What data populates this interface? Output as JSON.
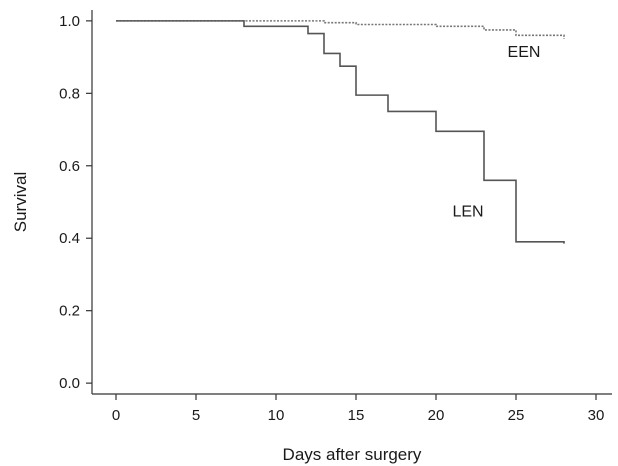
{
  "chart_data": {
    "type": "line",
    "title": "",
    "xlabel": "Days after surgery",
    "ylabel": "Survival",
    "xlim": [
      -1.5,
      31
    ],
    "ylim": [
      -0.03,
      1.03
    ],
    "xticks": [
      0,
      5,
      10,
      15,
      20,
      25,
      30
    ],
    "yticks": [
      0.0,
      0.2,
      0.4,
      0.6,
      0.8,
      1.0
    ],
    "xtick_labels": [
      "0",
      "5",
      "10",
      "15",
      "20",
      "25",
      "30"
    ],
    "ytick_labels": [
      "0.0",
      "0.2",
      "0.4",
      "0.6",
      "0.8",
      "1.0"
    ],
    "grid": false,
    "legend": "none",
    "step": true,
    "series": [
      {
        "name": "EEN",
        "style": "dotted",
        "color": "#777777",
        "label_at": [
          25.5,
          0.9
        ],
        "x": [
          0,
          8,
          13,
          15,
          20,
          23,
          25,
          28
        ],
        "y": [
          1.0,
          1.0,
          0.995,
          0.99,
          0.985,
          0.975,
          0.96,
          0.95
        ]
      },
      {
        "name": "LEN",
        "style": "solid",
        "color": "#555555",
        "label_at": [
          22,
          0.46
        ],
        "x": [
          0,
          8,
          12,
          13,
          14,
          15,
          17,
          20,
          23,
          25,
          28
        ],
        "y": [
          1.0,
          0.985,
          0.965,
          0.91,
          0.875,
          0.795,
          0.75,
          0.695,
          0.56,
          0.39,
          0.385
        ]
      }
    ]
  }
}
